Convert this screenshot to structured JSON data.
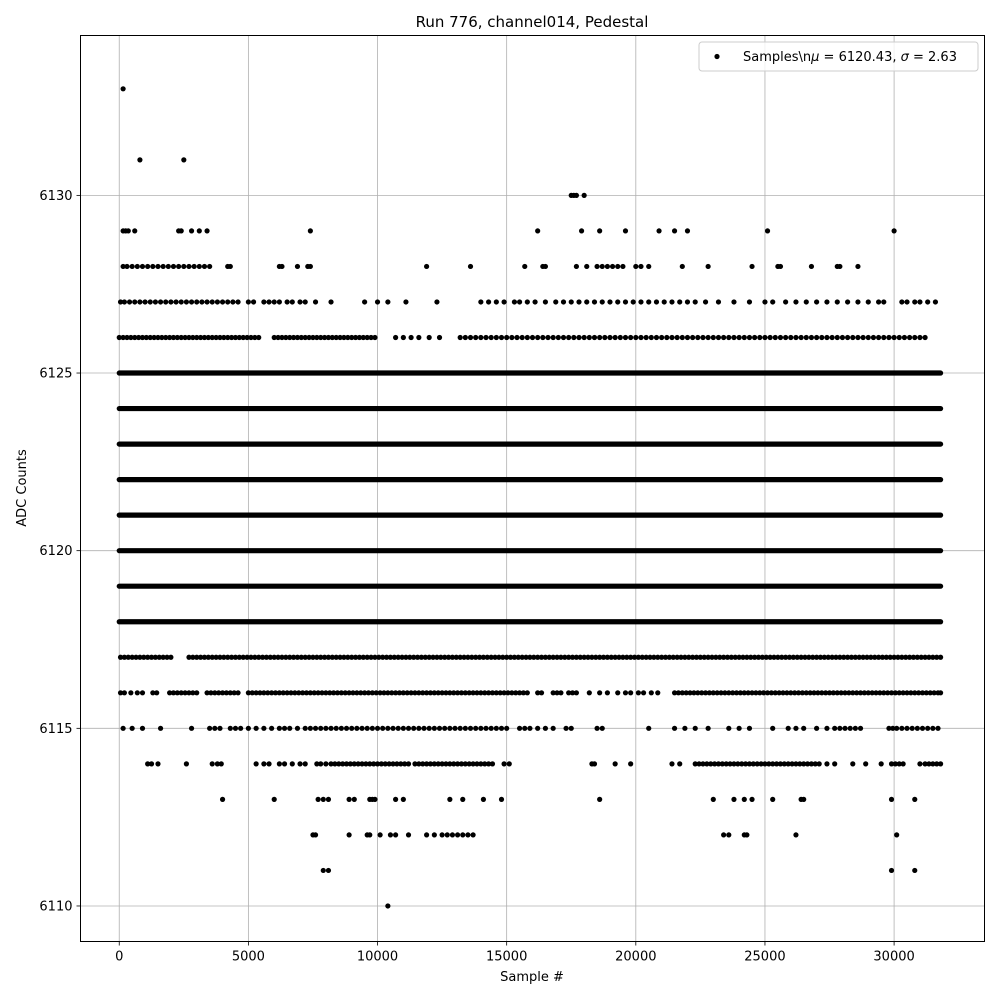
{
  "chart_data": {
    "type": "scatter",
    "title": "Run 776, channel014, Pedestal",
    "xlabel": "Sample #",
    "ylabel": "ADC Counts",
    "xlim": [
      -1500,
      33500
    ],
    "ylim": [
      6109.0,
      6134.5
    ],
    "xticks": [
      0,
      5000,
      10000,
      15000,
      20000,
      25000,
      30000
    ],
    "yticks": [
      6110,
      6115,
      6120,
      6125,
      6130
    ],
    "xtick_labels": [
      "0",
      "5000",
      "10000",
      "15000",
      "20000",
      "25000",
      "30000"
    ],
    "ytick_labels": [
      "6110",
      "6115",
      "6120",
      "6125",
      "6130"
    ],
    "grid": true,
    "legend": {
      "placement": "top-right",
      "label": "Samples\\nμ = 6120.43, σ = 2.63",
      "label_prefix": "Samples\\n",
      "mu_symbol": "μ",
      "mu_text": " = 6120.43, ",
      "sigma_symbol": "σ",
      "sigma_text": " = 2.63"
    },
    "marker_color": "#000000",
    "dense_rows": [
      {
        "y": 6118,
        "x_range": [
          0,
          31800
        ]
      },
      {
        "y": 6119,
        "x_range": [
          0,
          31800
        ]
      },
      {
        "y": 6120,
        "x_range": [
          0,
          31800
        ]
      },
      {
        "y": 6121,
        "x_range": [
          0,
          31800
        ]
      },
      {
        "y": 6122,
        "x_range": [
          0,
          31800
        ]
      },
      {
        "y": 6123,
        "x_range": [
          0,
          31800
        ]
      },
      {
        "y": 6124,
        "x_range": [
          0,
          31800
        ]
      },
      {
        "y": 6125,
        "x_range": [
          0,
          31800
        ]
      }
    ],
    "series": [
      {
        "y": 6133,
        "x": [
          150
        ]
      },
      {
        "y": 6131,
        "x": [
          800,
          2500
        ]
      },
      {
        "y": 6130,
        "x": [
          17500,
          17600,
          17700,
          18000
        ]
      },
      {
        "y": 6129,
        "x": [
          150,
          250,
          350,
          600,
          2300,
          2400,
          2800,
          3100,
          3400,
          7400,
          16200,
          17900,
          18600,
          19600,
          20900,
          21500,
          22000,
          25100,
          30000
        ]
      },
      {
        "y": 6128,
        "x": [
          150,
          300,
          500,
          700,
          900,
          1100,
          1300,
          1500,
          1700,
          1900,
          2100,
          2300,
          2500,
          2700,
          2900,
          3100,
          3300,
          3500,
          4200,
          4300,
          6200,
          6300,
          6900,
          7300,
          7400,
          11900,
          13600,
          15700,
          16400,
          16500,
          17700,
          18100,
          18500,
          18700,
          18900,
          19100,
          19300,
          19500,
          20000,
          20200,
          20500,
          21800,
          22800,
          24500,
          25500,
          25600,
          26800,
          27800,
          27900,
          28600
        ]
      },
      {
        "y": 6127,
        "x": [
          50,
          200,
          400,
          600,
          800,
          1000,
          1200,
          1400,
          1600,
          1800,
          2000,
          2200,
          2400,
          2600,
          2800,
          3000,
          3200,
          3400,
          3600,
          3800,
          4000,
          4200,
          4400,
          4600,
          5000,
          5200,
          5600,
          5800,
          6000,
          6200,
          6500,
          6700,
          7000,
          7200,
          7600,
          8200,
          9500,
          10000,
          10400,
          11100,
          12300,
          14000,
          14300,
          14600,
          14900,
          15300,
          15500,
          15800,
          16100,
          16500,
          16900,
          17200,
          17500,
          17800,
          18100,
          18400,
          18700,
          19000,
          19300,
          19600,
          19900,
          20200,
          20500,
          20800,
          21100,
          21400,
          21700,
          22000,
          22300,
          22700,
          23200,
          23800,
          24400,
          25000,
          25300,
          25800,
          26200,
          26600,
          27000,
          27400,
          27800,
          28200,
          28600,
          29000,
          29400,
          29600,
          30300,
          30500,
          30800,
          31000,
          31300,
          31600
        ]
      },
      {
        "y": 6126,
        "x": [
          0,
          150,
          300,
          450,
          600,
          750,
          900,
          1050,
          1200,
          1350,
          1500,
          1650,
          1800,
          1950,
          2100,
          2250,
          2400,
          2550,
          2700,
          2850,
          3000,
          3150,
          3300,
          3450,
          3600,
          3750,
          3900,
          4050,
          4200,
          4350,
          4500,
          4650,
          4800,
          4950,
          5100,
          5250,
          5400,
          6000,
          6150,
          6300,
          6450,
          6600,
          6750,
          6900,
          7050,
          7200,
          7350,
          7500,
          7650,
          7800,
          7950,
          8100,
          8250,
          8400,
          8550,
          8700,
          8850,
          9000,
          9150,
          9300,
          9450,
          9600,
          9750,
          9900,
          10700,
          11000,
          11300,
          11600,
          12000,
          12400,
          13200,
          13400,
          13600,
          13800,
          14000,
          14200,
          14400,
          14600,
          14800,
          15000,
          15200,
          15400,
          15600,
          15800,
          16000,
          16200,
          16400,
          16600,
          16800,
          17000,
          17200,
          17400,
          17600,
          17800,
          18000,
          18200,
          18400,
          18600,
          18800,
          19000,
          19200,
          19400,
          19600,
          19800,
          20000,
          20200,
          20400,
          20600,
          20800,
          21000,
          21200,
          21400,
          21600,
          21800,
          22000,
          22200,
          22400,
          22600,
          22800,
          23000,
          23200,
          23400,
          23600,
          23800,
          24000,
          24200,
          24400,
          24600,
          24800,
          25000,
          25200,
          25400,
          25600,
          25800,
          26000,
          26200,
          26400,
          26600,
          26800,
          27000,
          27200,
          27400,
          27600,
          27800,
          28000,
          28200,
          28400,
          28600,
          28800,
          29000,
          29200,
          29400,
          29600,
          29800,
          30000,
          30200,
          30400,
          30600,
          30800,
          31000,
          31200
        ]
      },
      {
        "y": 6117,
        "x": [
          50,
          200,
          350,
          500,
          650,
          800,
          950,
          1100,
          1250,
          1400,
          1550,
          1700,
          1850,
          2000,
          2700,
          2850,
          3000,
          3150,
          3300,
          3450,
          3600,
          3750,
          3900,
          4050,
          4200,
          4350,
          4500,
          4650,
          4800,
          4950,
          5100,
          5250,
          5400,
          5550,
          5700,
          5850,
          6000,
          6150,
          6300,
          6450,
          6600,
          6750,
          6900,
          7050,
          7200,
          7350,
          7500,
          7650,
          7800,
          7950,
          8100,
          8250,
          8400,
          8550,
          8700,
          8850,
          9000,
          9150,
          9300,
          9450,
          9600,
          9750,
          9900,
          10050,
          10200,
          10350,
          10500,
          10650,
          10800,
          10950,
          11100,
          11250,
          11400,
          11550,
          11700,
          11850,
          12000,
          12150,
          12300,
          12450,
          12600,
          12750,
          12900,
          13050,
          13200,
          13350,
          13500,
          13650,
          13800,
          13950,
          14100,
          14250,
          14400,
          14550,
          14700,
          14850,
          15000,
          15150,
          15300,
          15450,
          15600,
          15750,
          15900,
          16050,
          16200,
          16350,
          16500,
          16650,
          16800,
          16950,
          17100,
          17250,
          17400,
          17550,
          17700,
          17850,
          18000,
          18150,
          18300,
          18450,
          18600,
          18750,
          18900,
          19050,
          19200,
          19350,
          19500,
          19650,
          19800,
          19950,
          20100,
          20250,
          20400,
          20550,
          20700,
          20850,
          21000,
          21150,
          21300,
          21450,
          21600,
          21750,
          21900,
          22050,
          22200,
          22350,
          22500,
          22650,
          22800,
          22950,
          23100,
          23250,
          23400,
          23550,
          23700,
          23850,
          24000,
          24150,
          24300,
          24450,
          24600,
          24750,
          24900,
          25050,
          25200,
          25350,
          25500,
          25650,
          25800,
          25950,
          26100,
          26250,
          26400,
          26550,
          26700,
          26850,
          27000,
          27150,
          27300,
          27450,
          27600,
          27750,
          27900,
          28050,
          28200,
          28350,
          28500,
          28650,
          28800,
          28950,
          29100,
          29250,
          29400,
          29550,
          29700,
          29850,
          30000,
          30150,
          30300,
          30450,
          30600,
          30750,
          30900,
          31050,
          31200,
          31350,
          31500,
          31650,
          31800
        ]
      },
      {
        "y": 6116,
        "x": [
          50,
          200,
          450,
          700,
          900,
          1300,
          1450,
          1950,
          2100,
          2250,
          2400,
          2550,
          2700,
          2850,
          3000,
          3400,
          3550,
          3700,
          3850,
          4000,
          4150,
          4300,
          4450,
          4600,
          5000,
          5150,
          5300,
          5450,
          5600,
          5750,
          5900,
          6050,
          6200,
          6350,
          6500,
          6650,
          6800,
          6950,
          7100,
          7250,
          7400,
          7550,
          7700,
          7850,
          8000,
          8150,
          8300,
          8450,
          8600,
          8750,
          8900,
          9050,
          9200,
          9350,
          9500,
          9650,
          9800,
          9950,
          10100,
          10250,
          10400,
          10550,
          10700,
          10850,
          11000,
          11150,
          11300,
          11450,
          11600,
          11750,
          11900,
          12050,
          12200,
          12350,
          12500,
          12650,
          12800,
          12950,
          13100,
          13250,
          13400,
          13550,
          13700,
          13850,
          14000,
          14150,
          14300,
          14450,
          14600,
          14750,
          14900,
          15050,
          15200,
          15350,
          15500,
          15650,
          15800,
          16200,
          16350,
          16800,
          16950,
          17100,
          17400,
          17550,
          17700,
          18200,
          18600,
          18900,
          19300,
          19600,
          19800,
          20100,
          20300,
          20600,
          20850,
          21500,
          21650,
          21800,
          21950,
          22100,
          22250,
          22400,
          22550,
          22700,
          22850,
          23000,
          23150,
          23300,
          23450,
          23600,
          23750,
          23900,
          24050,
          24200,
          24350,
          24500,
          24650,
          24800,
          24950,
          25100,
          25250,
          25400,
          25550,
          25700,
          25850,
          26000,
          26150,
          26300,
          26450,
          26600,
          26750,
          26900,
          27050,
          27200,
          27350,
          27500,
          27650,
          27800,
          27950,
          28100,
          28250,
          28400,
          28550,
          28700,
          28850,
          29000,
          29150,
          29300,
          29450,
          29600,
          29750,
          29900,
          30050,
          30200,
          30350,
          30500,
          30650,
          30800,
          30950,
          31100,
          31250,
          31400,
          31550,
          31700,
          31800
        ]
      },
      {
        "y": 6115,
        "x": [
          150,
          500,
          900,
          1600,
          2800,
          3500,
          3700,
          3900,
          4300,
          4500,
          4700,
          5000,
          5300,
          5600,
          5900,
          6200,
          6400,
          6600,
          6900,
          7200,
          7400,
          7600,
          7800,
          8000,
          8200,
          8400,
          8600,
          8800,
          9000,
          9200,
          9400,
          9600,
          9800,
          10000,
          10200,
          10400,
          10600,
          10800,
          11000,
          11200,
          11400,
          11600,
          11800,
          12000,
          12200,
          12400,
          12600,
          12800,
          13000,
          13200,
          13400,
          13600,
          13800,
          14000,
          14200,
          14400,
          14600,
          14800,
          15000,
          15500,
          15700,
          15900,
          16200,
          16500,
          16800,
          17300,
          17500,
          18500,
          18700,
          20500,
          21500,
          21900,
          22300,
          22800,
          23600,
          24000,
          24400,
          25300,
          25900,
          26200,
          26500,
          27000,
          27400,
          27700,
          27900,
          28100,
          28300,
          28500,
          28700,
          29800,
          29950,
          30100,
          30300,
          30500,
          30700,
          30900,
          31100,
          31300,
          31500,
          31700
        ]
      },
      {
        "y": 6114,
        "x": [
          1100,
          1250,
          1500,
          2600,
          3600,
          3800,
          3950,
          5300,
          5600,
          5800,
          6200,
          6400,
          6700,
          7000,
          7200,
          7650,
          7800,
          8000,
          8200,
          8350,
          8500,
          8650,
          8800,
          8950,
          9100,
          9250,
          9400,
          9550,
          9700,
          9850,
          10000,
          10150,
          10300,
          10450,
          10600,
          10750,
          10900,
          11050,
          11200,
          11450,
          11600,
          11750,
          11900,
          12050,
          12200,
          12350,
          12500,
          12650,
          12800,
          12950,
          13100,
          13250,
          13400,
          13550,
          13700,
          13850,
          14000,
          14150,
          14300,
          14450,
          14900,
          15100,
          18300,
          18400,
          19200,
          19800,
          21400,
          21700,
          22300,
          22450,
          22600,
          22750,
          22900,
          23050,
          23200,
          23350,
          23500,
          23650,
          23800,
          23950,
          24100,
          24250,
          24400,
          24550,
          24700,
          24850,
          25000,
          25150,
          25300,
          25450,
          25600,
          25750,
          25900,
          26050,
          26200,
          26350,
          26500,
          26650,
          26800,
          26950,
          27100,
          27400,
          27700,
          28400,
          28900,
          29500,
          29900,
          30050,
          30200,
          30350,
          31000,
          31200,
          31350,
          31500,
          31650,
          31800
        ]
      },
      {
        "y": 6113,
        "x": [
          4000,
          6000,
          7700,
          7900,
          8100,
          8900,
          9100,
          9700,
          9800,
          9900,
          10700,
          11000,
          12800,
          13300,
          14100,
          14800,
          18600,
          23000,
          23800,
          24200,
          24500,
          25300,
          26400,
          26500,
          29900,
          30800
        ]
      },
      {
        "y": 6112,
        "x": [
          7500,
          7600,
          8900,
          9600,
          9700,
          10100,
          10500,
          10700,
          11200,
          11900,
          12200,
          12500,
          12700,
          12900,
          13100,
          13300,
          13500,
          13700,
          23400,
          23600,
          24200,
          24300,
          26200,
          30100
        ]
      },
      {
        "y": 6111,
        "x": [
          7900,
          8100,
          29900,
          30800
        ]
      },
      {
        "y": 6110,
        "x": [
          10400
        ]
      }
    ]
  }
}
